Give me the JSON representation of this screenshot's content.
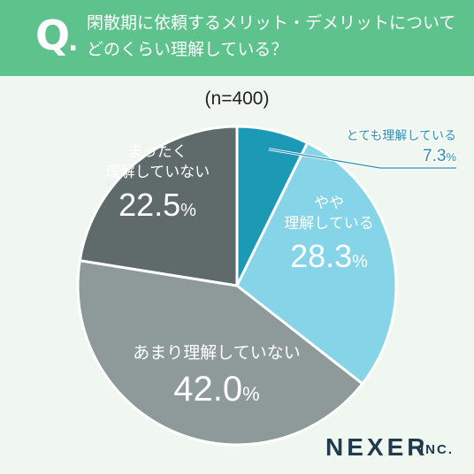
{
  "question": {
    "mark": "Q",
    "dot": ".",
    "line1": "閑散期に依頼するメリット・デメリットについて",
    "line2": "どのくらい理解している？"
  },
  "sample_size": "(n=400)",
  "brand": {
    "name": "NEXER",
    "suffix": "INC."
  },
  "colors": {
    "header": "#5ec28c",
    "background": "#f0f6f0",
    "accent_blue": "#2a8fb3"
  },
  "chart_data": {
    "type": "pie",
    "title": "",
    "start_angle_deg": 0,
    "direction": "clockwise",
    "slices": [
      {
        "label": "とても理解している",
        "value": 7.3,
        "value_text": "7.3",
        "unit": "%",
        "color": "#1c9ab5"
      },
      {
        "label": "やや\n理解している",
        "value": 28.3,
        "value_text": "28.3",
        "unit": "%",
        "color": "#86d4e8"
      },
      {
        "label": "あまり理解していない",
        "value": 42.0,
        "value_text": "42.0",
        "unit": "%",
        "color": "#8e9a9a"
      },
      {
        "label": "まったく\n理解していない",
        "value": 22.5,
        "value_text": "22.5",
        "unit": "%",
        "color": "#5f6a6b"
      }
    ]
  }
}
